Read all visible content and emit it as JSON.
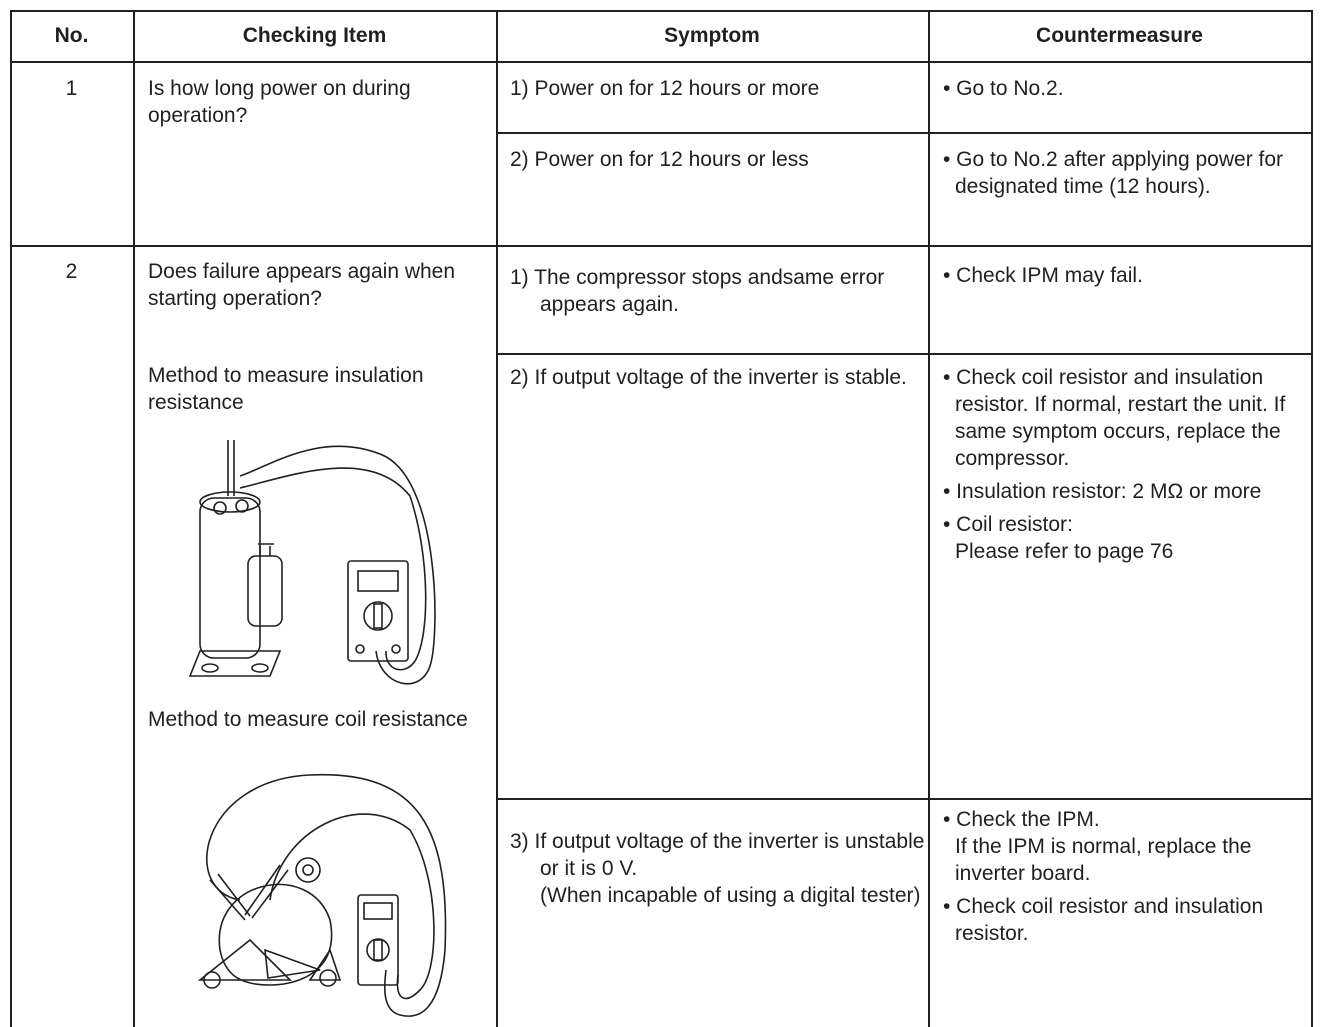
{
  "table": {
    "header": [
      "No.",
      "Checking Item",
      "Symptom",
      "Countermeasure"
    ],
    "rows": [
      {
        "no": "1",
        "item": [
          "Is how long power on during operation?"
        ],
        "symptoms": [
          {
            "text": "1) Power on for 12 hours or more",
            "countermeasures": [
              "• Go to No.2."
            ]
          },
          {
            "text": "2) Power on for 12 hours or less",
            "countermeasures": [
              "• Go to No.2 after applying power for designated time (12 hours)."
            ]
          }
        ]
      },
      {
        "no": "2",
        "item": [
          "Does failure appears again when starting operation?",
          "Method to measure insulation resistance",
          "Method to measure coil resistance"
        ],
        "symptoms": [
          {
            "text": "1) The compressor stops andsame error appears again.",
            "countermeasures": [
              "• Check IPM may fail."
            ]
          },
          {
            "text": "2) If output voltage of the inverter is stable.",
            "countermeasures": [
              "• Check coil resistor and insulation resistor. If normal, restart the unit. If same symptom occurs, replace the compressor.",
              "• Insulation resistor: 2 MΩ or more",
              "• Coil resistor:\nPlease refer to page 76"
            ]
          },
          {
            "text": "3) If output voltage of the inverter is unstable or it is 0 V.\n(When incapable of using a digital tester)",
            "countermeasures": [
              "• Check the IPM.\nIf the IPM is normal, replace the inverter board.",
              "• Check coil resistor and insulation resistor."
            ]
          }
        ]
      }
    ]
  }
}
